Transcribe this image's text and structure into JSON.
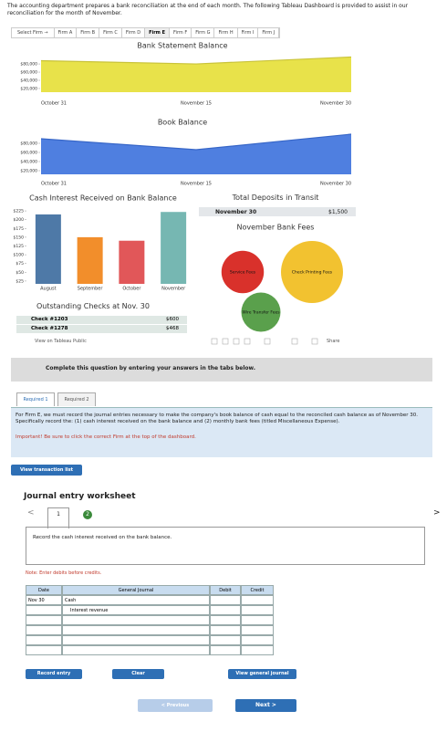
{
  "intro": "The accounting department prepares a bank reconciliation at the end of each month. The following Tableau Dashboard is provided to assist in our reconciliation for the month of November.",
  "firm_tabs": {
    "selector": "Select Firm →",
    "firms": [
      "Firm A",
      "Firm B",
      "Firm C",
      "Firm D",
      "Firm E",
      "Firm F",
      "Firm G",
      "Firm H",
      "Firm I",
      "Firm J"
    ],
    "selected": "Firm E"
  },
  "chart_data": [
    {
      "type": "area",
      "title": "Bank Statement Balance",
      "categories": [
        "October 31",
        "November 15",
        "November 30"
      ],
      "values": [
        88000,
        80000,
        97000
      ],
      "color": "#e8e24a",
      "line_color": "#c9c33a",
      "ylim": [
        11000,
        98000
      ],
      "yticks": [
        {
          "value": 80000,
          "label": "$80,000"
        },
        {
          "value": 60000,
          "label": "$60,000"
        },
        {
          "value": 40000,
          "label": "$40,000"
        },
        {
          "value": 20000,
          "label": "$20,000"
        }
      ]
    },
    {
      "type": "area",
      "title": "Book Balance",
      "categories": [
        "October 31",
        "November 15",
        "November 30"
      ],
      "values": [
        90000,
        66000,
        100000
      ],
      "color": "#4f7fe0",
      "line_color": "#3867c8",
      "ylim": [
        12000,
        102000
      ],
      "yticks": [
        {
          "value": 80000,
          "label": "$80,000"
        },
        {
          "value": 60000,
          "label": "$60,000"
        },
        {
          "value": 40000,
          "label": "$40,000"
        },
        {
          "value": 20000,
          "label": "$20,000"
        }
      ]
    },
    {
      "type": "bar",
      "title": "Cash Interest Received on Bank Balance",
      "categories": [
        "August",
        "September",
        "October",
        "November"
      ],
      "values": [
        215,
        150,
        140,
        222
      ],
      "colors": [
        "#4e79a7",
        "#f28e2b",
        "#e15759",
        "#76b7b2"
      ],
      "ylim": [
        17,
        233
      ],
      "yticks": [
        {
          "value": 225,
          "label": "$225"
        },
        {
          "value": 200,
          "label": "$200"
        },
        {
          "value": 175,
          "label": "$175"
        },
        {
          "value": 150,
          "label": "$150"
        },
        {
          "value": 125,
          "label": "$125"
        },
        {
          "value": 100,
          "label": "$100"
        },
        {
          "value": 75,
          "label": "$75"
        },
        {
          "value": 50,
          "label": "$50"
        },
        {
          "value": 25,
          "label": "$25"
        }
      ]
    },
    {
      "type": "bubble",
      "title": "November Bank Fees",
      "categories": [
        "Service Fees",
        "Check Printing Fees",
        "Wire Transfer Fees"
      ],
      "values": [
        35,
        75,
        30
      ],
      "colors": [
        "#d9312b",
        "#f2c230",
        "#5aa04c"
      ]
    }
  ],
  "deposits": {
    "title": "Total Deposits in Transit",
    "date": "November 30",
    "amount": "$1,500"
  },
  "checks": {
    "title": "Outstanding Checks at Nov. 30",
    "rows": [
      [
        "Check #1203",
        "$600"
      ],
      [
        "Check #1278",
        "$468"
      ]
    ]
  },
  "tableau": {
    "view": "View on Tableau Public",
    "share": "Share"
  },
  "banner": "Complete this question by entering your answers in the tabs below.",
  "req_tabs": [
    "Required 1",
    "Required 2"
  ],
  "instructions": {
    "text": "For Firm E, we must record the journal entries necessary to make the company's book balance of cash equal to the reconciled cash balance as of November 30. Specifically record the: (1) cash interest received on the bank balance and (2) monthly bank fees (titled Miscellaneous Expense).",
    "important": "Important! Be sure to click the correct Firm at the top of the dashboard."
  },
  "view_transactions": "View transaction list",
  "worksheet": {
    "title": "Journal entry worksheet",
    "prev": "<",
    "next": ">",
    "pages": [
      "1",
      "2"
    ],
    "prompt": "Record the cash interest received on the bank balance.",
    "note": "Note: Enter debits before credits.",
    "headers": [
      "Date",
      "General Journal",
      "Debit",
      "Credit"
    ],
    "date": "Nov 30",
    "accounts": [
      "Cash",
      "Interest revenue"
    ],
    "buttons": [
      "Record entry",
      "Clear",
      "View general journal"
    ]
  },
  "nav": {
    "previous": "< Previous",
    "next": "Next >"
  }
}
